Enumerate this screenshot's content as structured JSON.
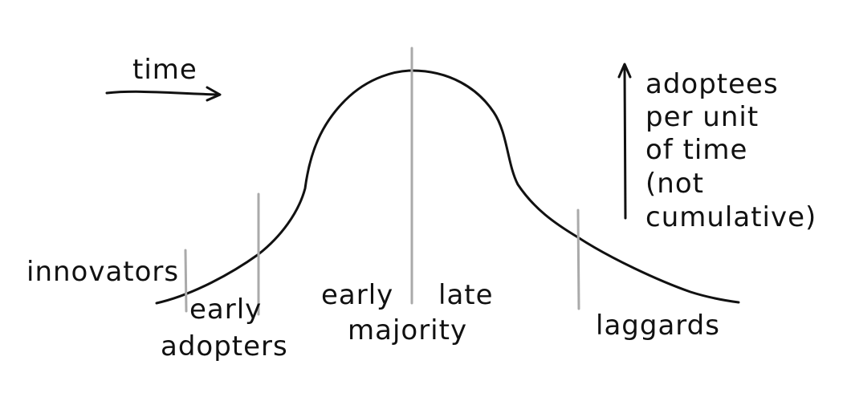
{
  "colors": {
    "ink": "#111111",
    "divider": "#aaaaaa",
    "background": "#ffffff"
  },
  "labels": {
    "time": "time",
    "y_axis_lines": [
      "adoptees",
      "per unit",
      "of time",
      "(not",
      "cumulative)"
    ],
    "innovators": "innovators",
    "early_adopters": [
      "early",
      "adopters"
    ],
    "early_majority_early": "early",
    "late_majority_late": "late",
    "majority": "majority",
    "laggards": "laggards"
  }
}
